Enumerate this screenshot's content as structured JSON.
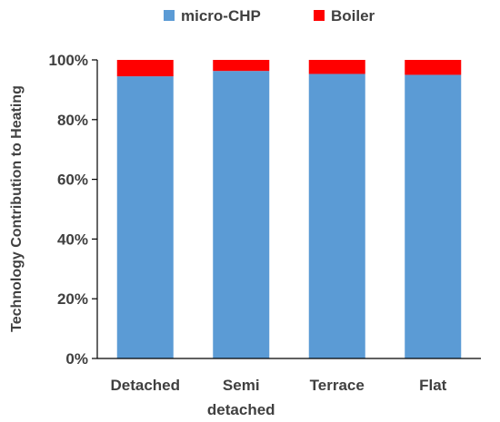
{
  "chart_data": {
    "type": "bar",
    "stacked": true,
    "title": "",
    "xlabel": "",
    "ylabel": "Technology Contribution to Heating",
    "ylim": [
      0,
      100
    ],
    "yticks": [
      "0%",
      "20%",
      "40%",
      "60%",
      "80%",
      "100%"
    ],
    "categories": [
      [
        "Detached"
      ],
      [
        "Semi",
        "detached"
      ],
      [
        "Terrace"
      ],
      [
        "Flat"
      ]
    ],
    "series": [
      {
        "name": "micro-CHP",
        "color": "#5B9BD5",
        "values": [
          94.5,
          96.3,
          95.3,
          95.0
        ]
      },
      {
        "name": "Boiler",
        "color": "#FF0000",
        "values": [
          5.5,
          3.7,
          4.7,
          5.0
        ]
      }
    ],
    "legend_position": "top",
    "grid": false
  }
}
